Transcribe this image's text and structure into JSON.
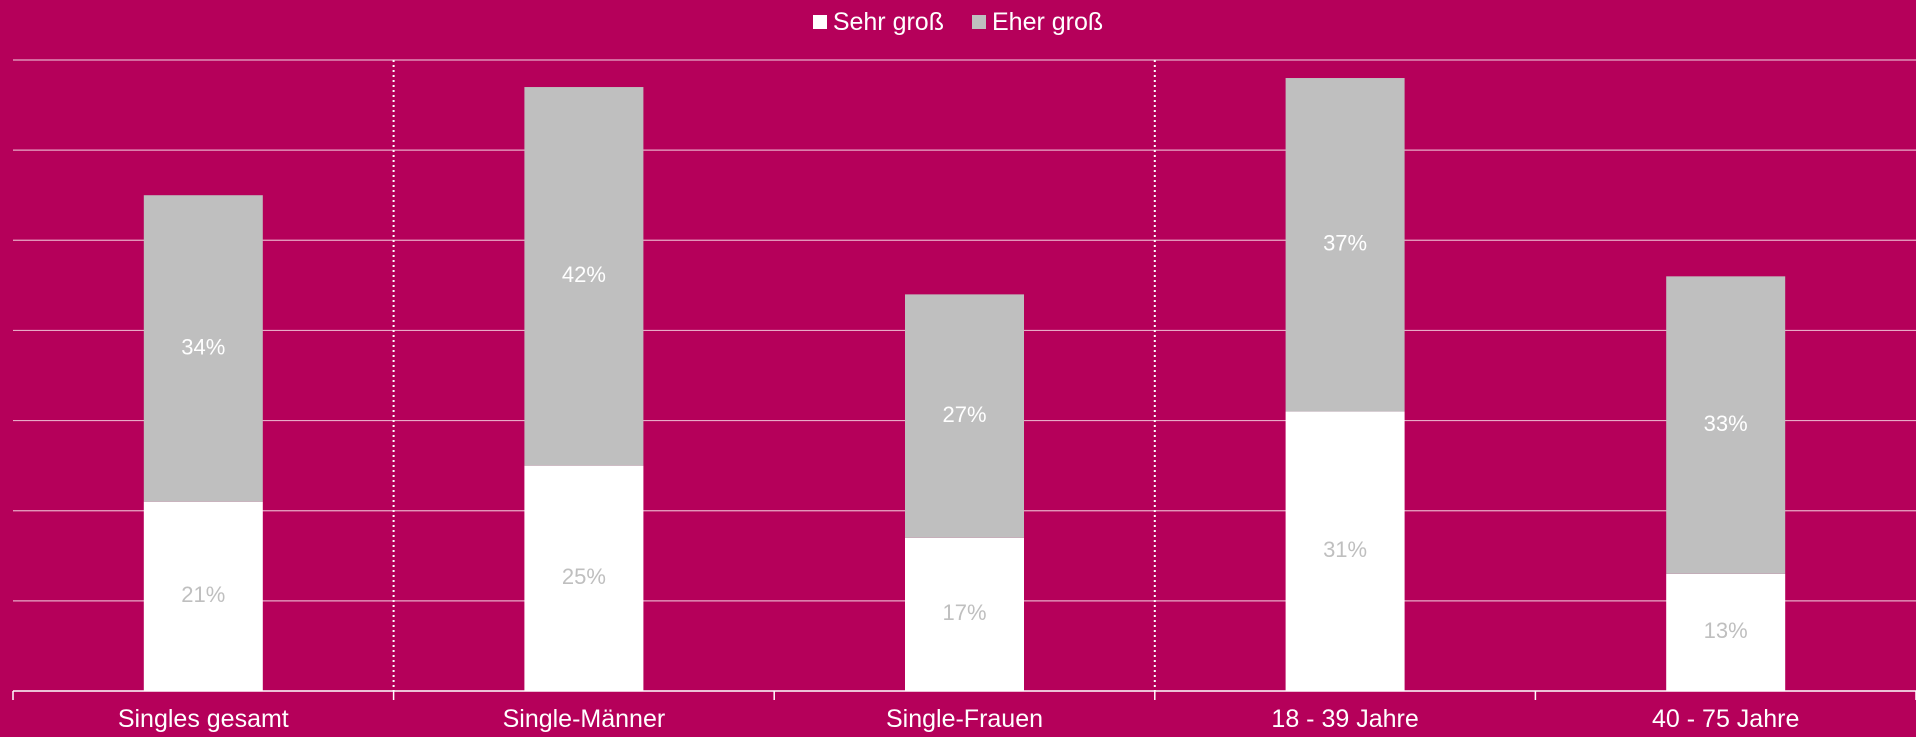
{
  "chart_data": {
    "type": "bar",
    "stacked": true,
    "categories": [
      "Singles gesamt",
      "Single-Männer",
      "Single-Frauen",
      "18 - 39 Jahre",
      "40 - 75 Jahre"
    ],
    "series": [
      {
        "name": "Sehr groß",
        "values": [
          21,
          25,
          17,
          31,
          13
        ],
        "labels": [
          "21%",
          "25%",
          "17%",
          "31%",
          "13%"
        ],
        "color": "#FFFFFF",
        "label_color": "#BFBFBF"
      },
      {
        "name": "Eher groß",
        "values": [
          34,
          42,
          27,
          37,
          33
        ],
        "labels": [
          "34%",
          "42%",
          "27%",
          "37%",
          "33%"
        ],
        "color": "#BFBFBF",
        "label_color": "#FFFFFF"
      }
    ],
    "ylim": [
      0,
      70
    ],
    "grid": true,
    "legend_position": "top-center",
    "group_separators_after": [
      0,
      2
    ],
    "background_color": "#B5005A",
    "grid_color": "#E8A9C6"
  }
}
